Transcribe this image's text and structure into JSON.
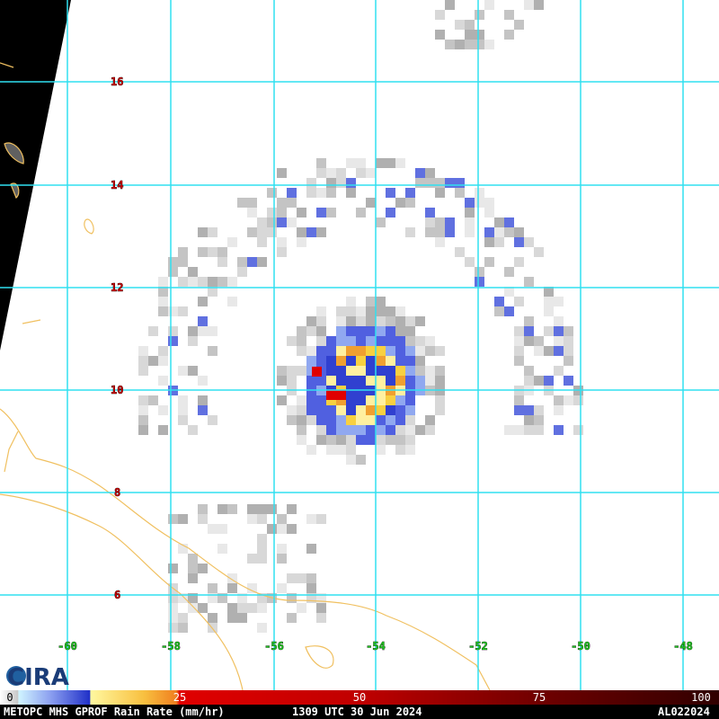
{
  "map": {
    "lat_labels": [
      "16",
      "14",
      "12",
      "10",
      "8",
      "6"
    ],
    "lon_labels": [
      "-60",
      "-58",
      "-56",
      "-54",
      "-52",
      "-50",
      "-48"
    ],
    "colorbar": {
      "labels": [
        "0",
        "25",
        "50",
        "75",
        "100"
      ]
    },
    "logo": "CIRA",
    "footer": {
      "product": "METOPC MHS GPROF Rain Rate (mm/hr)",
      "time": "1309 UTC 30 Jun 2024",
      "storm_id": "AL022024"
    }
  }
}
